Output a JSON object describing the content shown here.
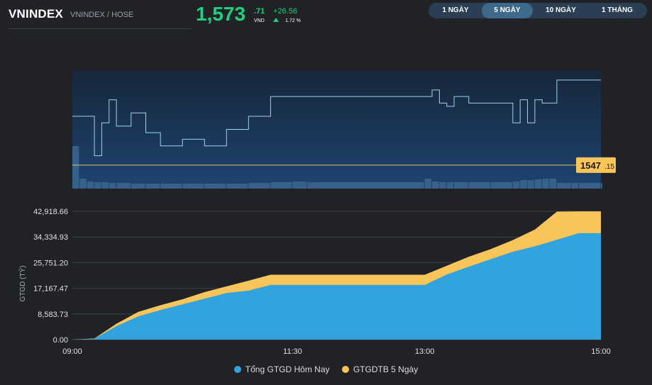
{
  "header": {
    "symbol": "VNINDEX",
    "exchange": "VNINDEX / HOSE",
    "price_main": "1,573",
    "price_decimal": ".71",
    "currency": "VND",
    "change": "+26.56",
    "change_percent": "1.72 %"
  },
  "tabs": [
    {
      "label": "1 NGÀY",
      "active": false
    },
    {
      "label": "5 NGÀY",
      "active": true
    },
    {
      "label": "10 NGÀY",
      "active": false
    },
    {
      "label": "1 THÁNG",
      "active": false
    }
  ],
  "colors": {
    "up": "#1fce7f",
    "price_line": "#9fd3ee",
    "reference_line": "#e8c46a",
    "today_area": "#33a3df",
    "avg5_area": "#f8c55a"
  },
  "chart_data": [
    {
      "type": "line",
      "name": "intraday-index",
      "reference_label": "1547",
      "reference_label_decimal": ".15",
      "reference_value": 1547.15,
      "x": [
        "09:00",
        "09:05",
        "09:10",
        "09:15",
        "09:20",
        "09:25",
        "09:30",
        "09:40",
        "09:50",
        "10:00",
        "10:15",
        "10:30",
        "10:45",
        "11:00",
        "11:15",
        "11:30",
        "11:40",
        "13:00",
        "13:05",
        "13:10",
        "13:15",
        "13:20",
        "13:30",
        "13:45",
        "14:00",
        "14:05",
        "14:10",
        "14:15",
        "14:20",
        "14:25",
        "14:30",
        "14:40",
        "14:45",
        "15:00"
      ],
      "values": [
        1562,
        1562,
        1562,
        1550,
        1560,
        1567,
        1559,
        1563,
        1557,
        1553,
        1555,
        1553,
        1558,
        1562,
        1568,
        1568,
        1568,
        1568,
        1570,
        1566,
        1565,
        1568,
        1566,
        1566,
        1560,
        1567,
        1560,
        1567,
        1566,
        1566,
        1573,
        1573,
        1573,
        1573
      ],
      "volume": [
        60,
        14,
        10,
        9,
        9,
        8,
        8,
        7,
        7,
        7,
        7,
        7,
        7,
        8,
        9,
        10,
        9,
        14,
        10,
        9,
        9,
        9,
        9,
        9,
        10,
        12,
        12,
        13,
        14,
        14,
        8,
        8,
        8,
        8
      ],
      "ylim": [
        1540,
        1576
      ]
    },
    {
      "type": "area",
      "name": "gtgd",
      "ylabel": "GTGD (TỶ)",
      "ylim": [
        0,
        42918.66
      ],
      "yticks": [
        "42,918.66",
        "34,334.93",
        "25,751.20",
        "17,167.47",
        "8,583.73",
        "0.00"
      ],
      "xticks": [
        "09:00",
        "11:30",
        "13:00",
        "15:00"
      ],
      "x": [
        "09:00",
        "09:15",
        "09:30",
        "09:45",
        "10:00",
        "10:15",
        "10:30",
        "10:45",
        "11:00",
        "11:15",
        "11:30",
        "13:00",
        "13:15",
        "13:30",
        "13:45",
        "14:00",
        "14:15",
        "14:30",
        "14:45",
        "15:00"
      ],
      "series": [
        {
          "name": "Tổng GTGD Hôm Nay",
          "color": "#33a3df",
          "values": [
            0,
            300,
            4500,
            7800,
            9900,
            11800,
            13700,
            15600,
            16400,
            18300,
            18300,
            18300,
            21800,
            24400,
            26900,
            29400,
            31200,
            33400,
            35600,
            35600
          ]
        },
        {
          "name": "GTGDTB 5 Ngày",
          "color": "#f8c55a",
          "values": [
            0,
            400,
            5300,
            9300,
            11500,
            13500,
            15900,
            17800,
            19700,
            21700,
            21700,
            21700,
            24700,
            27700,
            30300,
            33300,
            36800,
            42800,
            42900,
            42900
          ]
        }
      ]
    }
  ]
}
